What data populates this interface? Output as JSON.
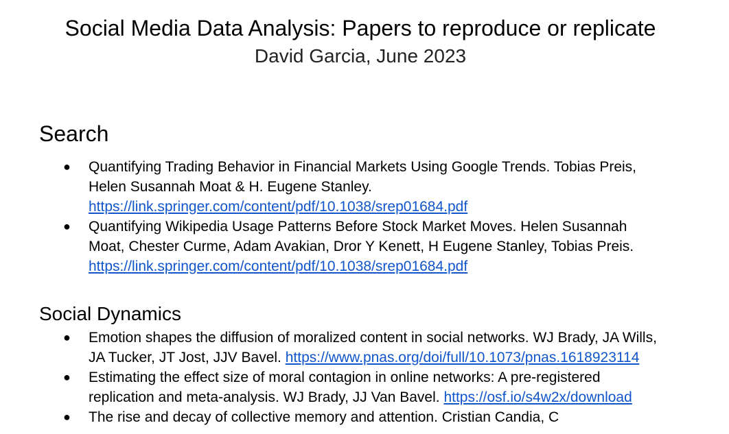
{
  "header": {
    "title": "Social Media Data Analysis: Papers to reproduce or replicate",
    "subtitle": "David Garcia, June 2023"
  },
  "sections": [
    {
      "heading": "Search",
      "items": [
        {
          "text": "Quantifying Trading Behavior in Financial Markets Using Google Trends. Tobias Preis, Helen Susannah Moat & H. Eugene Stanley.",
          "link": "https://link.springer.com/content/pdf/10.1038/srep01684.pdf"
        },
        {
          "text": "Quantifying Wikipedia Usage Patterns Before Stock Market Moves. Helen Susannah Moat, Chester Curme, Adam Avakian, Dror Y Kenett, H Eugene Stanley, Tobias Preis.",
          "link": "https://link.springer.com/content/pdf/10.1038/srep01684.pdf"
        }
      ]
    },
    {
      "heading": "Social Dynamics",
      "items": [
        {
          "text": "Emotion shapes the diffusion of moralized content in social networks. WJ Brady, JA Wills, JA Tucker, JT Jost, JJV Bavel.",
          "link": "https://www.pnas.org/doi/full/10.1073/pnas.1618923114"
        },
        {
          "text": "Estimating the effect size of moral contagion in online networks: A pre-registered replication and meta-analysis. WJ Brady, JJ Van Bavel.",
          "link": "https://osf.io/s4w2x/download"
        },
        {
          "text": "The rise and decay of collective memory and attention. Cristian Candia, C"
        }
      ]
    }
  ]
}
